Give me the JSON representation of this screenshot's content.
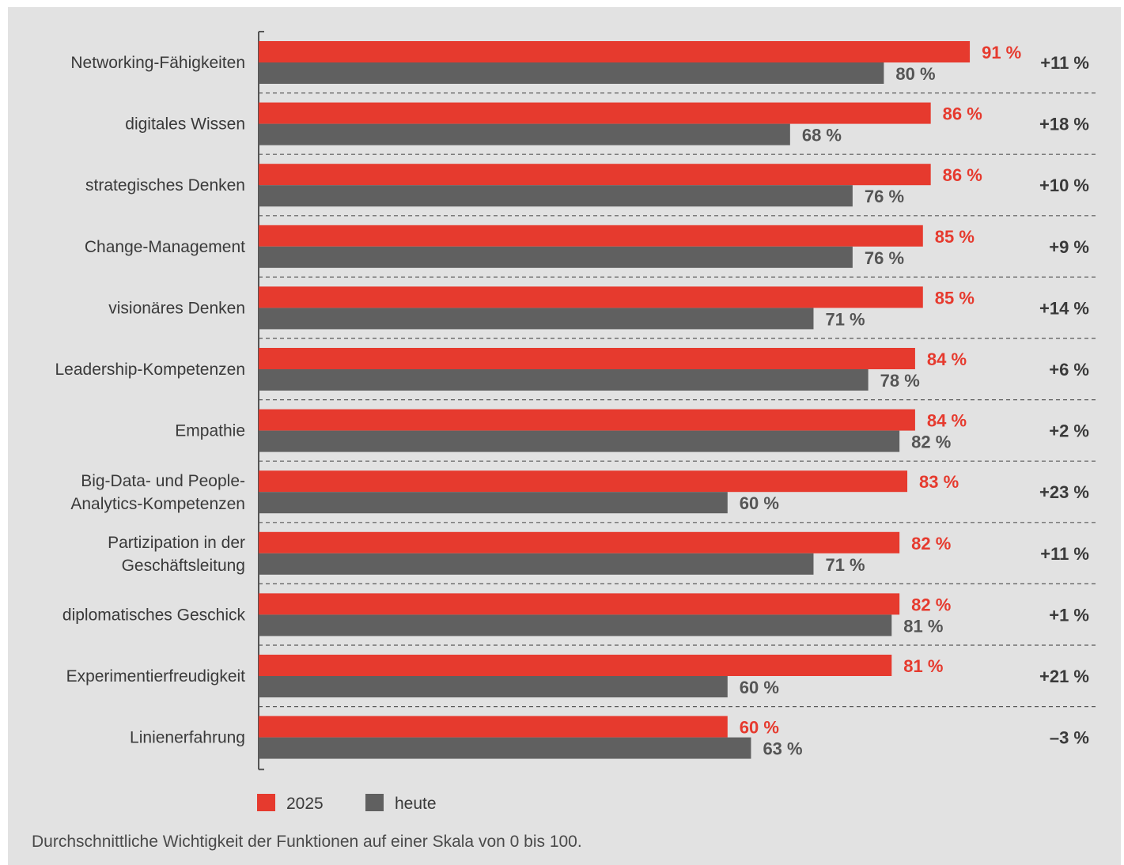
{
  "colors": {
    "series_2025": "#e63a2e",
    "series_heute": "#606060",
    "label_dark": "#3a3a3a",
    "background": "#e2e2e2"
  },
  "footnote": "Durchschnittliche Wichtigkeit der Funktionen auf einer Skala von 0 bis 100.",
  "chart_data": {
    "type": "bar",
    "orientation": "horizontal",
    "categories": [
      [
        "Networking-Fähigkeiten"
      ],
      [
        "digitales Wissen"
      ],
      [
        "strategisches Denken"
      ],
      [
        "Change-Management"
      ],
      [
        "visionäres Denken"
      ],
      [
        "Leadership-Kompetenzen"
      ],
      [
        "Empathie"
      ],
      [
        "Big-Data- und People-",
        "Analytics-Kompetenzen"
      ],
      [
        "Partizipation in der",
        "Geschäftsleitung"
      ],
      [
        "diplomatisches Geschick"
      ],
      [
        "Experimentierfreudigkeit"
      ],
      [
        "Linienerfahrung"
      ]
    ],
    "series": [
      {
        "name": "2025",
        "color": "#e63a2e",
        "values": [
          91,
          86,
          86,
          85,
          85,
          84,
          84,
          83,
          82,
          82,
          81,
          60
        ],
        "labels": [
          "91 %",
          "86 %",
          "86 %",
          "85 %",
          "85 %",
          "84 %",
          "84 %",
          "83 %",
          "82 %",
          "82 %",
          "81 %",
          "60 %"
        ]
      },
      {
        "name": "heute",
        "color": "#606060",
        "values": [
          80,
          68,
          76,
          76,
          71,
          78,
          82,
          60,
          71,
          81,
          60,
          63
        ],
        "labels": [
          "80 %",
          "68 %",
          "76 %",
          "76 %",
          "71 %",
          "78 %",
          "82 %",
          "60 %",
          "71 %",
          "81 %",
          "60 %",
          "63 %"
        ]
      }
    ],
    "differences": [
      "+11 %",
      "+18 %",
      "+10 %",
      "+9 %",
      "+14 %",
      "+6 %",
      "+2 %",
      "+23 %",
      "+11 %",
      "+1 %",
      "+21 %",
      "–3 %"
    ],
    "legend": [
      "2025",
      "heute"
    ],
    "legend_position": "bottom-left",
    "xlim": [
      0,
      100
    ],
    "grid": false
  }
}
